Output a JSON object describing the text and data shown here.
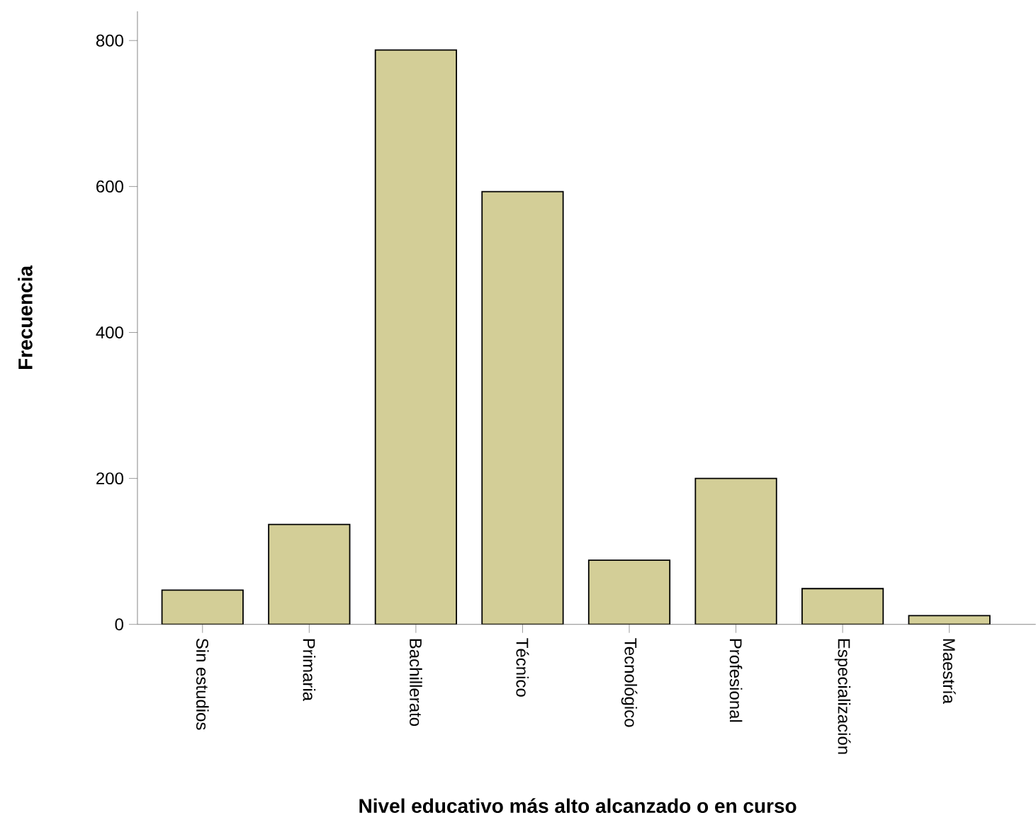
{
  "chart_data": {
    "type": "bar",
    "xlabel": "Nivel educativo más alto alcanzado o en curso",
    "ylabel": "Frecuencia",
    "categories": [
      "Sin estudios",
      "Primaria",
      "Bachillerato",
      "Técnico",
      "Tecnológico",
      "Profesional",
      "Especialización",
      "Maestría"
    ],
    "values": [
      47,
      137,
      787,
      593,
      88,
      200,
      49,
      12
    ],
    "color": "#d3ce97",
    "ylim": [
      0,
      840
    ],
    "yticks": [
      0,
      200,
      400,
      600,
      800
    ]
  }
}
